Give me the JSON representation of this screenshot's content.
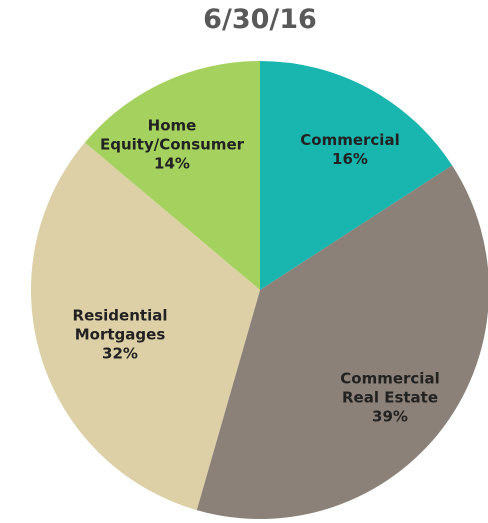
{
  "chart_data": {
    "type": "pie",
    "title": "6/30/16",
    "categories": [
      "Commercial",
      "Commercial Real Estate",
      "Residential Mortgages",
      "Home Equity/Consumer"
    ],
    "values": [
      16,
      39,
      32,
      14
    ],
    "value_labels": [
      "16%",
      "39%",
      "32%",
      "14%"
    ],
    "colors": [
      "#19b6af",
      "#8b8178",
      "#ddd0a6",
      "#a5d25f"
    ]
  }
}
